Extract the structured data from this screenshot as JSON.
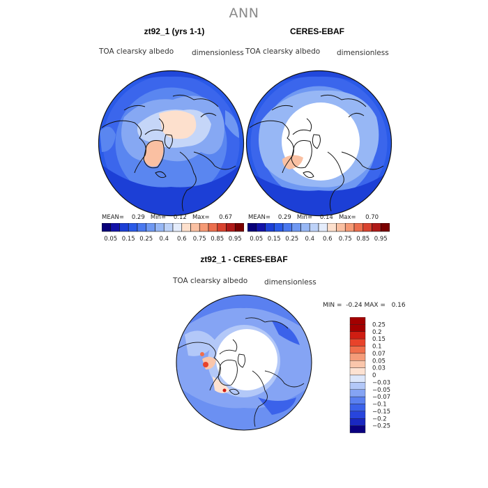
{
  "figure": {
    "title": "ANN"
  },
  "colors": {
    "land": "#ffffff",
    "coast": "#111111",
    "scale_abs": [
      "#08007a",
      "#1212a8",
      "#1c3fd6",
      "#2a5ae8",
      "#4a78ef",
      "#6f98f2",
      "#97b7f5",
      "#bdd2f8",
      "#e4ecfb",
      "#fde0cd",
      "#fac0a2",
      "#f59a75",
      "#ec6f4e",
      "#d9432f",
      "#b01a18",
      "#7a0000"
    ],
    "scale_diff": [
      "#0a0080",
      "#1a28c0",
      "#2845dc",
      "#3b62ea",
      "#5a80f0",
      "#85a4f4",
      "#b3c8f8",
      "#dde7fb",
      "#fde2d2",
      "#fac6ab",
      "#f59c79",
      "#f06e4b",
      "#e8432a",
      "#cf1d12",
      "#a30000"
    ]
  },
  "panels": [
    {
      "title": "zt92_1 (yrs 1-1)",
      "variable": "TOA clearsky albedo",
      "units": "dimensionless",
      "stats": {
        "mean_label": "MEAN=",
        "mean": "0.29",
        "min_label": "Min=",
        "min": "0.12",
        "max_label": "Max=",
        "max": "0.67"
      },
      "colorbar_ticks": [
        "0.05",
        "0.15",
        "0.25",
        "0.4",
        "0.6",
        "0.75",
        "0.85",
        "0.95"
      ]
    },
    {
      "title": "CERES-EBAF",
      "variable": "TOA clearsky albedo",
      "units": "dimensionless",
      "stats": {
        "mean_label": "MEAN=",
        "mean": "0.29",
        "min_label": "Min=",
        "min": "0.14",
        "max_label": "Max=",
        "max": "0.70"
      },
      "colorbar_ticks": [
        "0.05",
        "0.15",
        "0.25",
        "0.4",
        "0.6",
        "0.75",
        "0.85",
        "0.95"
      ]
    }
  ],
  "diff_panel": {
    "title": "zt92_1 - CERES-EBAF",
    "variable": "TOA clearsky albedo",
    "units": "dimensionless",
    "min_label": "MIN =",
    "min": "-0.24",
    "max_label": "MAX =",
    "max": "0.16",
    "colorbar_ticks": [
      "0.25",
      "0.2",
      "0.15",
      "0.1",
      "0.07",
      "0.05",
      "0.03",
      "0",
      "−0.03",
      "−0.05",
      "−0.07",
      "−0.1",
      "−0.15",
      "−0.2",
      "−0.25"
    ]
  },
  "chart_data": [
    {
      "type": "heatmap",
      "title": "zt92_1 (yrs 1-1)",
      "projection": "north polar stereographic",
      "variable": "TOA clearsky albedo",
      "units": "dimensionless",
      "mean": 0.29,
      "min": 0.12,
      "max": 0.67,
      "levels": [
        0.05,
        0.1,
        0.15,
        0.2,
        0.25,
        0.3,
        0.4,
        0.5,
        0.6,
        0.7,
        0.75,
        0.8,
        0.85,
        0.9,
        0.95
      ]
    },
    {
      "type": "heatmap",
      "title": "CERES-EBAF",
      "projection": "north polar stereographic",
      "variable": "TOA clearsky albedo",
      "units": "dimensionless",
      "mean": 0.29,
      "min": 0.14,
      "max": 0.7,
      "levels": [
        0.05,
        0.1,
        0.15,
        0.2,
        0.25,
        0.3,
        0.4,
        0.5,
        0.6,
        0.7,
        0.75,
        0.8,
        0.85,
        0.9,
        0.95
      ]
    },
    {
      "type": "heatmap",
      "title": "zt92_1 - CERES-EBAF",
      "projection": "north polar stereographic",
      "variable": "TOA clearsky albedo",
      "units": "dimensionless",
      "min": -0.24,
      "max": 0.16,
      "levels": [
        -0.25,
        -0.2,
        -0.15,
        -0.1,
        -0.07,
        -0.05,
        -0.03,
        0,
        0.03,
        0.05,
        0.07,
        0.1,
        0.15,
        0.2,
        0.25
      ]
    }
  ]
}
